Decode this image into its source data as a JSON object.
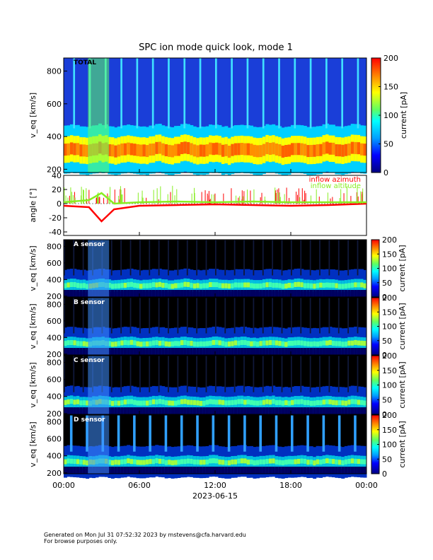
{
  "title": "SPC ion mode quick look, mode 1",
  "footer": {
    "line1": "Generated on Mon Jul 31 07:52:32 2023 by mstevens@cfa.harvard.edu",
    "line2": "For browse purposes only."
  },
  "x_axis": {
    "ticks": [
      "00:00",
      "06:00",
      "12:00",
      "18:00",
      "00:00"
    ],
    "date_label": "2023-06-15"
  },
  "colorbar": {
    "label": "current [pA]",
    "ticks_main": [
      "200",
      "150",
      "100",
      "50",
      "0"
    ],
    "ticks_small": [
      "200",
      "150",
      "100",
      "50",
      "0"
    ]
  },
  "colors": {
    "series_azimuth": "#ff0000",
    "series_altitude": "#88ee22"
  },
  "chart_data": [
    {
      "type": "heatmap",
      "panel": "TOTAL",
      "label": "TOTAL",
      "xlabel": "",
      "ylabel": "v_eq [km/s]",
      "ylim": [
        180,
        880
      ],
      "yticks": [
        "800",
        "600",
        "400",
        "200"
      ],
      "x_range": [
        "00:00",
        "24:00"
      ],
      "zlim_pA": [
        0,
        200
      ],
      "peak_speed_km_s": 320
    },
    {
      "type": "line",
      "panel": "angle",
      "ylabel": "angle [°]",
      "ylim": [
        -45,
        40
      ],
      "yticks": [
        "40",
        "20",
        "0",
        "-20",
        "-40"
      ],
      "series": [
        {
          "name": "inflow azimuth",
          "x": [
            "00:00",
            "02:00",
            "03:00",
            "04:00",
            "06:00",
            "09:00",
            "12:00",
            "15:00",
            "18:00",
            "21:00",
            "24:00"
          ],
          "values": [
            -3,
            -5,
            -25,
            -8,
            -3,
            -2,
            -1,
            -2,
            -3,
            -2,
            0
          ]
        },
        {
          "name": "inflow altitude",
          "x": [
            "00:00",
            "02:00",
            "03:00",
            "04:00",
            "06:00",
            "09:00",
            "12:00",
            "15:00",
            "18:00",
            "21:00",
            "24:00"
          ],
          "values": [
            2,
            5,
            15,
            0,
            2,
            3,
            2,
            3,
            2,
            2,
            2
          ]
        }
      ]
    },
    {
      "type": "heatmap",
      "panel": "A sensor",
      "label": "A sensor",
      "ylabel": "v_eq [km/s]",
      "ylim": [
        190,
        880
      ],
      "yticks": [
        "800",
        "600",
        "400",
        "200"
      ],
      "zlim_pA": [
        0,
        200
      ],
      "peak_speed_km_s": 330
    },
    {
      "type": "heatmap",
      "panel": "B sensor",
      "label": "B sensor",
      "ylabel": "v_eq [km/s]",
      "ylim": [
        190,
        880
      ],
      "yticks": [
        "800",
        "600",
        "400",
        "200"
      ],
      "zlim_pA": [
        0,
        200
      ],
      "peak_speed_km_s": 330
    },
    {
      "type": "heatmap",
      "panel": "C sensor",
      "label": "C sensor",
      "ylabel": "v_eq [km/s]",
      "ylim": [
        190,
        880
      ],
      "yticks": [
        "800",
        "600",
        "400",
        "200"
      ],
      "zlim_pA": [
        0,
        200
      ],
      "peak_speed_km_s": 330
    },
    {
      "type": "heatmap",
      "panel": "D sensor",
      "label": "D sensor",
      "ylabel": "v_eq [km/s]",
      "ylim": [
        190,
        880
      ],
      "yticks": [
        "800",
        "600",
        "400",
        "200"
      ],
      "zlim_pA": [
        0,
        200
      ],
      "peak_speed_km_s": 330
    }
  ]
}
